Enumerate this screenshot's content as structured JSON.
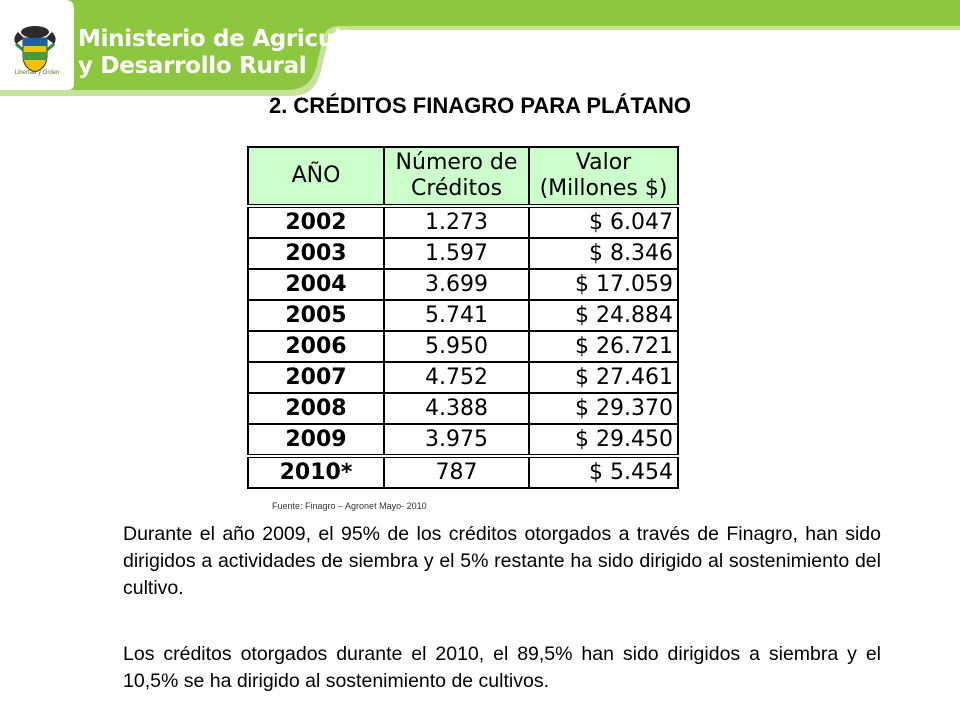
{
  "header": {
    "ministry_line1": "Ministerio de Agricultura",
    "ministry_line2": "y Desarrollo Rural",
    "motto": "Libertad y Orden",
    "colors": {
      "banner_green": "#8dc63f",
      "banner_light": "#c7e29a"
    },
    "crest_icon": "colombia-coat-of-arms-icon"
  },
  "title": "2. CRÉDITOS FINAGRO PARA PLÁTANO",
  "table": {
    "headers": [
      "AÑO",
      "Número de Créditos",
      "Valor (Millones $)"
    ],
    "header_bg": "#ccffcc",
    "rows": [
      [
        "2002",
        "1.273",
        "$ 6.047"
      ],
      [
        "2003",
        "1.597",
        "$ 8.346"
      ],
      [
        "2004",
        "3.699",
        "$ 17.059"
      ],
      [
        "2005",
        "5.741",
        "$ 24.884"
      ],
      [
        "2006",
        "5.950",
        "$ 26.721"
      ],
      [
        "2007",
        "4.752",
        "$ 27.461"
      ],
      [
        "2008",
        "4.388",
        "$ 29.370"
      ],
      [
        "2009",
        "3.975",
        "$ 29.450"
      ],
      [
        "2010*",
        "787",
        "$ 5.454"
      ]
    ]
  },
  "source": "Fuente: Finagro – Agronet Mayo- 2010",
  "paragraphs": [
    "Durante el año 2009, el 95% de los créditos otorgados a través de Finagro, han sido dirigidos a actividades de siembra y el 5% restante ha sido dirigido al sostenimiento del cultivo.",
    "Los créditos otorgados durante el 2010, el 89,5% han sido dirigidos a siembra y el 10,5% se ha dirigido al sostenimiento de cultivos."
  ]
}
